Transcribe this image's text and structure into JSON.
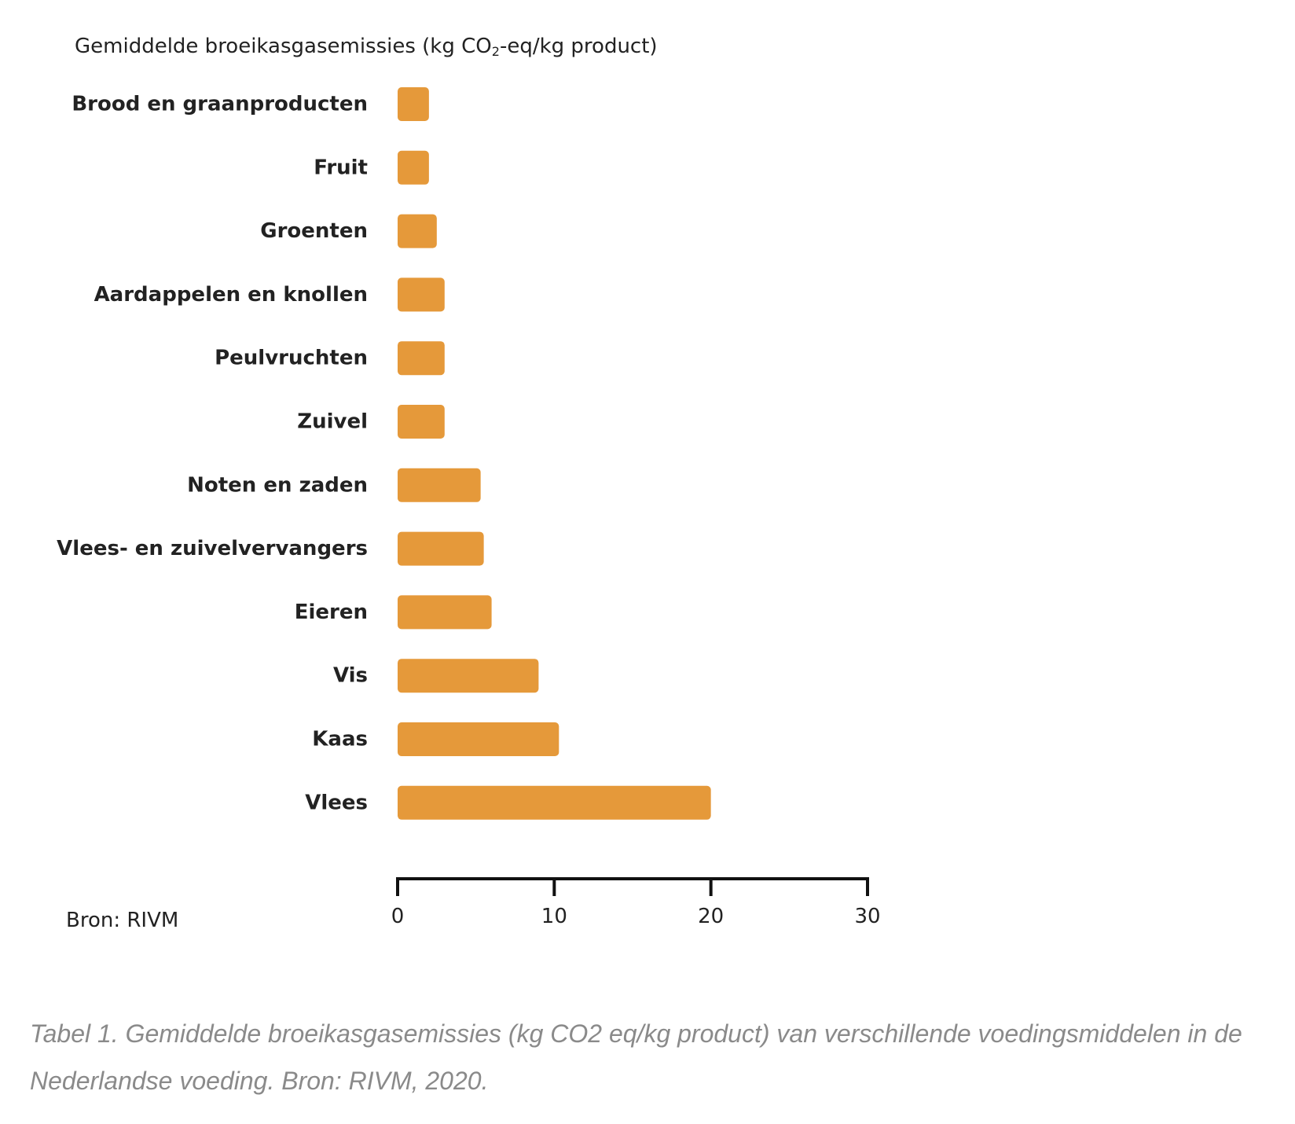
{
  "chart_data": {
    "type": "bar",
    "orientation": "horizontal",
    "title_prefix": "Gemiddelde broeikasgasemissies (kg CO",
    "title_sub": "2",
    "title_suffix": "-eq/kg product)",
    "categories": [
      "Brood en graanproducten",
      "Fruit",
      "Groenten",
      "Aardappelen en knollen",
      "Peulvruchten",
      "Zuivel",
      "Noten en zaden",
      "Vlees- en zuivelvervangers",
      "Eieren",
      "Vis",
      "Kaas",
      "Vlees"
    ],
    "values": [
      2.0,
      2.0,
      2.5,
      3.0,
      3.0,
      3.0,
      5.3,
      5.5,
      6.0,
      9.0,
      10.3,
      20.0
    ],
    "xlim": [
      0,
      30
    ],
    "xticks": [
      "0",
      "10",
      "20",
      "30"
    ],
    "grid": false,
    "bar_color": "#E5993A",
    "source": "Bron: RIVM"
  },
  "caption": "Tabel 1. Gemiddelde broeikasgasemissies (kg CO2 eq/kg product) van verschillende voedingsmiddelen in de Nederlandse voeding. Bron: RIVM, 2020."
}
